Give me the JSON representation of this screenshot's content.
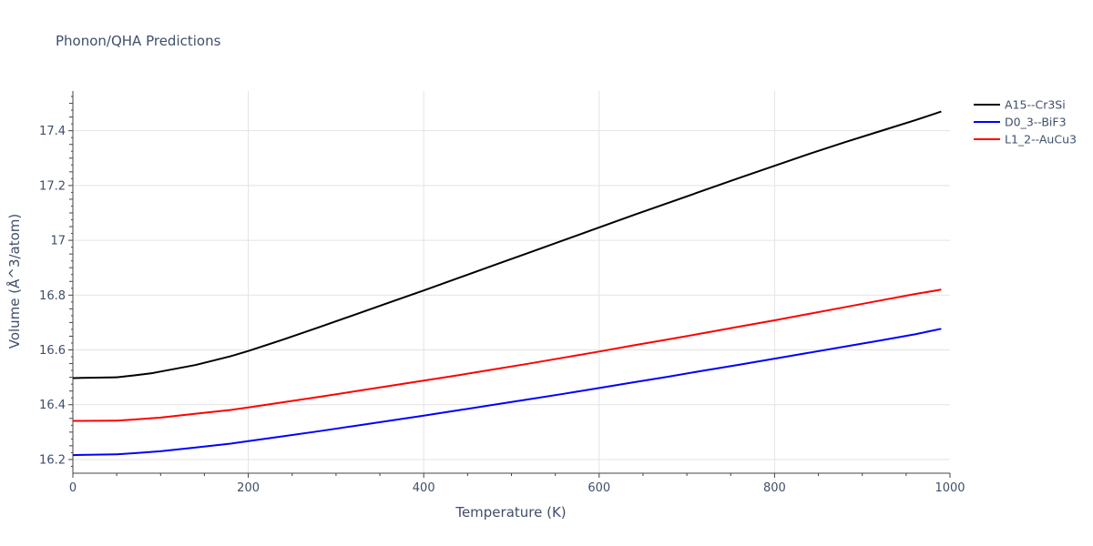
{
  "chart_data": {
    "type": "line",
    "title": "Phonon/QHA Predictions",
    "xlabel": "Temperature (K)",
    "ylabel": "Volume (Å^3/atom)",
    "xlim": [
      0,
      1000
    ],
    "ylim": [
      16.15,
      17.545
    ],
    "x_ticks": [
      "0",
      "200",
      "400",
      "600",
      "800",
      "1000"
    ],
    "y_ticks": [
      "16.2",
      "16.4",
      "16.6",
      "16.8",
      "17",
      "17.2",
      "17.4"
    ],
    "grid": true,
    "legend_position": "top-right",
    "series": [
      {
        "name": "A15--Cr3Si",
        "color": "#000000",
        "x": [
          0,
          10,
          50,
          70,
          90,
          100,
          140,
          180,
          200,
          240,
          280,
          320,
          360,
          400,
          440,
          480,
          520,
          560,
          600,
          640,
          680,
          720,
          760,
          800,
          840,
          880,
          920,
          960,
          990
        ],
        "y": [
          16.497,
          16.498,
          16.5,
          16.507,
          16.515,
          16.521,
          16.545,
          16.577,
          16.596,
          16.638,
          16.682,
          16.727,
          16.772,
          16.817,
          16.863,
          16.909,
          16.955,
          17.001,
          17.047,
          17.093,
          17.138,
          17.183,
          17.228,
          17.272,
          17.316,
          17.358,
          17.398,
          17.438,
          17.47
        ]
      },
      {
        "name": "D0_3--BiF3",
        "color": "#0000ff",
        "x": [
          0,
          10,
          50,
          70,
          100,
          140,
          180,
          200,
          240,
          280,
          320,
          360,
          400,
          440,
          480,
          520,
          560,
          600,
          640,
          680,
          720,
          760,
          800,
          840,
          880,
          920,
          960,
          990
        ],
        "y": [
          16.216,
          16.217,
          16.219,
          16.223,
          16.23,
          16.244,
          16.258,
          16.267,
          16.285,
          16.303,
          16.322,
          16.341,
          16.36,
          16.38,
          16.4,
          16.42,
          16.44,
          16.461,
          16.482,
          16.503,
          16.525,
          16.546,
          16.568,
          16.59,
          16.612,
          16.634,
          16.657,
          16.677
        ]
      },
      {
        "name": "L1_2--AuCu3",
        "color": "#ff0000",
        "x": [
          0,
          10,
          50,
          70,
          100,
          140,
          180,
          200,
          240,
          280,
          320,
          360,
          400,
          440,
          480,
          520,
          560,
          600,
          640,
          680,
          720,
          760,
          800,
          840,
          880,
          920,
          960,
          990
        ],
        "y": [
          16.341,
          16.341,
          16.342,
          16.346,
          16.353,
          16.367,
          16.381,
          16.39,
          16.409,
          16.428,
          16.448,
          16.468,
          16.488,
          16.508,
          16.529,
          16.55,
          16.572,
          16.594,
          16.617,
          16.639,
          16.662,
          16.685,
          16.708,
          16.732,
          16.756,
          16.78,
          16.804,
          16.82
        ]
      }
    ]
  }
}
